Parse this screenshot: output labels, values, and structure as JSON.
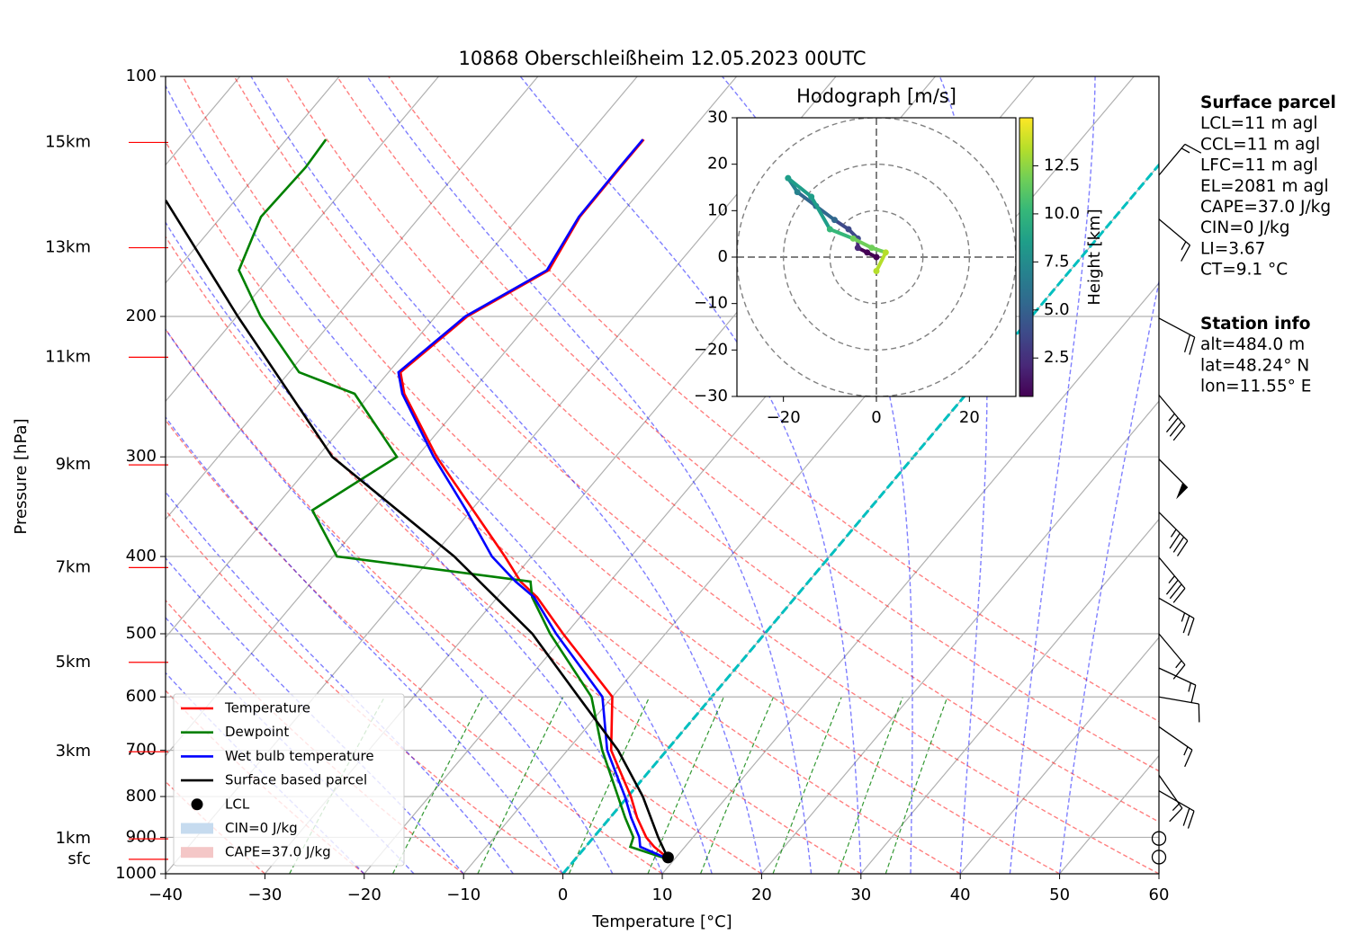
{
  "chart_data": {
    "type": "skew-t",
    "title": "10868 Oberschleißheim 12.05.2023 00UTC",
    "x_label": "Temperature [°C]",
    "y_label": "Pressure [hPa]",
    "xlim": [
      -40,
      60
    ],
    "xticks": [
      {
        "value": -40,
        "label": "−40"
      },
      {
        "value": -30,
        "label": "−30"
      },
      {
        "value": -20,
        "label": "−20"
      },
      {
        "value": -10,
        "label": "−10"
      },
      0,
      10,
      20,
      30,
      40,
      50,
      60
    ],
    "ylim": [
      1000,
      100
    ],
    "yticks": [
      100,
      200,
      300,
      400,
      500,
      600,
      700,
      800,
      900,
      1000
    ],
    "y_scale": "log",
    "grid": true,
    "height_tick_color": "#ff0000",
    "height_ticks": [
      {
        "value": 121,
        "label": "15km"
      },
      {
        "value": 164,
        "label": "13km"
      },
      {
        "value": 225,
        "label": "11km"
      },
      {
        "value": 307,
        "label": "9km"
      },
      {
        "value": 413,
        "label": "7km"
      },
      {
        "value": 543,
        "label": "5km"
      },
      {
        "value": 703,
        "label": "3km"
      },
      {
        "value": 904,
        "label": "1km"
      },
      {
        "value": 959,
        "label": "sfc"
      }
    ],
    "series": [
      {
        "name": "Temperature",
        "color": "#ff0000",
        "pressure": [
          955,
          925,
          900,
          850,
          800,
          700,
          600,
          500,
          450,
          430,
          400,
          350,
          300,
          250,
          235,
          200,
          175,
          150,
          130,
          120
        ],
        "values": [
          9.2,
          6.9,
          5.3,
          2.7,
          0.3,
          -5.6,
          -10,
          -20.3,
          -26,
          -29,
          -32.7,
          -39.8,
          -48,
          -56.6,
          -58.8,
          -56.8,
          -52.5,
          -53.9,
          -54,
          -54
        ]
      },
      {
        "name": "Dewpoint",
        "color": "#008000",
        "pressure": [
          955,
          925,
          900,
          850,
          800,
          700,
          600,
          500,
          450,
          430,
          400,
          350,
          300,
          250,
          235,
          200,
          175,
          150,
          130,
          120
        ],
        "values": [
          8.8,
          4.5,
          4,
          1.5,
          -1,
          -6.5,
          -12.1,
          -21.6,
          -26.5,
          -28,
          -49.6,
          -56,
          -52,
          -61.6,
          -69,
          -77.6,
          -83.7,
          -86,
          -85.7,
          -86
        ]
      },
      {
        "name": "Wet bulb temperature",
        "color": "#0000ff",
        "pressure": [
          955,
          925,
          900,
          850,
          800,
          700,
          600,
          500,
          450,
          430,
          400,
          350,
          300,
          250,
          235,
          200,
          175,
          150,
          130,
          120
        ],
        "values": [
          9.0,
          5.5,
          4.6,
          2.1,
          -0.3,
          -6,
          -11,
          -21,
          -26.3,
          -29.5,
          -34,
          -40.5,
          -48.3,
          -56.8,
          -59,
          -57,
          -52.7,
          -54,
          -54.1,
          -54.1
        ]
      },
      {
        "name": "Surface based parcel",
        "color": "#000000",
        "pressure": [
          955,
          900,
          800,
          700,
          600,
          500,
          400,
          300,
          200,
          143
        ],
        "values": [
          9.2,
          6.5,
          1.5,
          -4.9,
          -13.4,
          -23.4,
          -37.8,
          -58.5,
          -79.9,
          -97
        ]
      }
    ],
    "lcl": {
      "name": "LCL",
      "pressure": 954,
      "temperature": 9.2,
      "color": "#000000"
    },
    "areas": [
      {
        "name": "CIN=0 J/kg",
        "color": "#c6dbef"
      },
      {
        "name": "CAPE=37.0 J/kg",
        "color": "#f4c7c7"
      }
    ],
    "legend": "lower left",
    "wind_barbs": {
      "pressure": [
        133,
        151,
        201,
        251,
        302,
        352,
        401,
        451,
        500,
        552,
        600,
        654,
        752,
        787,
        903,
        953
      ],
      "speed": [
        15,
        15,
        20,
        35,
        50,
        35,
        35,
        25,
        15,
        15,
        10,
        15,
        15,
        20,
        0,
        0
      ],
      "direction": [
        40,
        130,
        118,
        140,
        135,
        135,
        140,
        120,
        140,
        115,
        100,
        125,
        145,
        120,
        0,
        0
      ]
    },
    "hodograph": {
      "title": "Hodograph [m/s]",
      "colorbar_label": "Height [km]",
      "colormap": "viridis",
      "xlim": [
        -30,
        30
      ],
      "ylim": [
        -30,
        30
      ],
      "xticks": [
        {
          "value": -20,
          "label": "−20"
        },
        0,
        20
      ],
      "yticks": [
        {
          "value": -30,
          "label": "−30"
        },
        {
          "value": -20,
          "label": "−20"
        },
        {
          "value": -10,
          "label": "−10"
        },
        0,
        10,
        20,
        30
      ],
      "clim": [
        0.5,
        15
      ],
      "cticks": [
        2.5,
        {
          "value": 5,
          "label": "5.0"
        },
        7.5,
        {
          "value": 10,
          "label": "10.0"
        },
        12.5
      ],
      "heights": [
        0.5,
        1,
        2,
        3,
        4,
        5,
        6,
        7,
        8,
        9,
        10,
        11,
        12,
        13,
        14
      ],
      "u": [
        0,
        -2,
        -4,
        -4,
        -6,
        -9,
        -13,
        -17,
        -19,
        -14,
        -10,
        -5,
        -1,
        2,
        0
      ],
      "v": [
        0,
        1,
        2,
        4,
        6,
        8,
        11,
        14,
        17,
        13,
        6,
        4,
        2,
        1,
        -3
      ]
    },
    "surface_parcel": {
      "title": "Surface parcel",
      "lines": [
        "LCL=11 m agl",
        "CCL=11 m agl",
        "LFC=11 m agl",
        "EL=2081 m agl",
        "CAPE=37.0 J/kg",
        "CIN=0 J/kg",
        "LI=3.67",
        "CT=9.1 °C"
      ]
    },
    "station_info": {
      "title": "Station info",
      "lines": [
        "alt=484.0 m",
        "lat=48.24° N",
        "lon=11.55° E"
      ]
    }
  }
}
